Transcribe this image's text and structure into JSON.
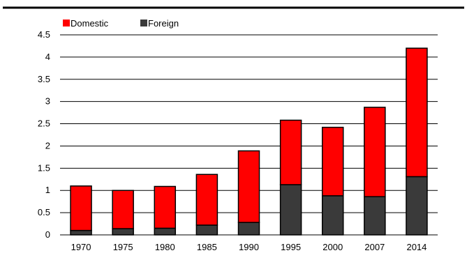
{
  "chart_data": {
    "type": "bar",
    "stacked": true,
    "categories": [
      "1970",
      "1975",
      "1980",
      "1985",
      "1990",
      "1995",
      "2000",
      "2007",
      "2014"
    ],
    "series": [
      {
        "name": "Foreign",
        "color": "#3a3a3a",
        "values": [
          0.1,
          0.14,
          0.15,
          0.22,
          0.28,
          1.13,
          0.88,
          0.86,
          1.31
        ]
      },
      {
        "name": "Domestic",
        "color": "#ff0000",
        "values": [
          1.0,
          0.86,
          0.94,
          1.14,
          1.61,
          1.45,
          1.54,
          2.01,
          2.89
        ]
      }
    ],
    "legend_order": [
      "Domestic",
      "Foreign"
    ],
    "ylim": [
      0,
      4.5
    ],
    "yticks": [
      "0",
      "0.5",
      "1",
      "1.5",
      "2",
      "2.5",
      "3",
      "3.5",
      "4",
      "4.5"
    ],
    "grid": true,
    "legend_position": "top-left",
    "title": "",
    "xlabel": "",
    "ylabel": ""
  }
}
